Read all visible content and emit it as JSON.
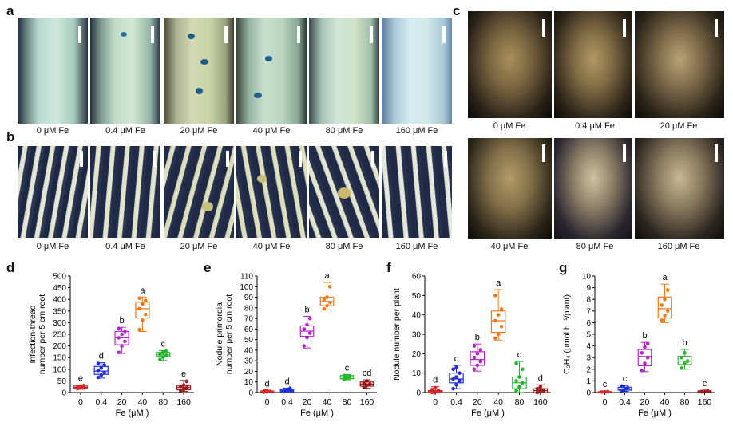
{
  "panel_labels": [
    "a",
    "b",
    "c",
    "d",
    "e",
    "f",
    "g"
  ],
  "row_a": {
    "captions": [
      "0 μM Fe",
      "0.4 μM Fe",
      "20 μM Fe",
      "40 μM Fe",
      "80 μM Fe",
      "160 μM Fe"
    ]
  },
  "row_b": {
    "captions": [
      "0 μM Fe",
      "0.4 μM Fe",
      "20 μM Fe",
      "40 μM Fe",
      "80 μM Fe",
      "160 μM Fe"
    ]
  },
  "panel_c": {
    "top_captions": [
      "0 μM Fe",
      "0.4 μM Fe",
      "20 μM Fe"
    ],
    "bottom_captions": [
      "40 μM Fe",
      "80 μM Fe",
      "160 μM Fe"
    ]
  },
  "colors": [
    "#d62728",
    "#1f2fd6",
    "#b526c9",
    "#f07a1a",
    "#22b52a",
    "#9e1a1a"
  ],
  "chart_data": [
    {
      "type": "box",
      "panel": "d",
      "ylabel": "Infection-thread number per 5 cm root",
      "ylabel_lines": [
        "Infection-thread",
        "number per 5 cm root"
      ],
      "xlabel": "Fe (μM )",
      "categories": [
        "0",
        "0.4",
        "20",
        "40",
        "80",
        "160"
      ],
      "ylim": [
        0,
        500
      ],
      "yticks": [
        0,
        50,
        100,
        150,
        200,
        250,
        300,
        350,
        400,
        450,
        500
      ],
      "letters": [
        "e",
        "d",
        "b",
        "a",
        "c",
        "e"
      ],
      "boxes": [
        {
          "min": 14,
          "q1": 18,
          "median": 22,
          "q3": 28,
          "max": 32,
          "points": [
            17,
            20,
            22,
            24,
            27,
            30
          ]
        },
        {
          "min": 62,
          "q1": 78,
          "median": 92,
          "q3": 112,
          "max": 128,
          "points": [
            65,
            75,
            85,
            95,
            105,
            118,
            125
          ]
        },
        {
          "min": 168,
          "q1": 205,
          "median": 235,
          "q3": 262,
          "max": 280,
          "points": [
            172,
            200,
            220,
            235,
            250,
            262,
            275
          ]
        },
        {
          "min": 262,
          "q1": 320,
          "median": 360,
          "q3": 388,
          "max": 410,
          "points": [
            270,
            310,
            335,
            360,
            380,
            395,
            405
          ]
        },
        {
          "min": 138,
          "q1": 155,
          "median": 162,
          "q3": 172,
          "max": 180,
          "points": [
            142,
            152,
            160,
            165,
            172,
            178
          ]
        },
        {
          "min": 5,
          "q1": 12,
          "median": 22,
          "q3": 30,
          "max": 52,
          "points": [
            8,
            14,
            20,
            26,
            32,
            48
          ]
        }
      ]
    },
    {
      "type": "box",
      "panel": "e",
      "ylabel": "Nodule primordia number per 5 cm root",
      "ylabel_lines": [
        "Nodule primordia",
        "number per 5 cm root"
      ],
      "xlabel": "Fe (μM )",
      "categories": [
        "0",
        "0.4",
        "20",
        "40",
        "80",
        "160"
      ],
      "ylim": [
        0,
        110
      ],
      "yticks": [
        0,
        10,
        20,
        30,
        40,
        50,
        60,
        70,
        80,
        90,
        100,
        110
      ],
      "letters": [
        "d",
        "d",
        "b",
        "a",
        "c",
        "cd"
      ],
      "boxes": [
        {
          "min": 0,
          "q1": 0.5,
          "median": 1,
          "q3": 1.5,
          "max": 2,
          "points": [
            0.5,
            1,
            1,
            1.5,
            2
          ]
        },
        {
          "min": 0,
          "q1": 1,
          "median": 2,
          "q3": 3,
          "max": 4,
          "points": [
            1,
            2,
            2,
            3,
            3,
            4
          ]
        },
        {
          "min": 42,
          "q1": 53,
          "median": 58,
          "q3": 63,
          "max": 72,
          "points": [
            44,
            52,
            56,
            60,
            64,
            70
          ]
        },
        {
          "min": 78,
          "q1": 82,
          "median": 86,
          "q3": 90,
          "max": 104,
          "points": [
            79,
            82,
            85,
            88,
            90,
            100
          ]
        },
        {
          "min": 12,
          "q1": 13,
          "median": 14.5,
          "q3": 16,
          "max": 17,
          "points": [
            12.5,
            14,
            15,
            16
          ]
        },
        {
          "min": 4,
          "q1": 6,
          "median": 8,
          "q3": 10,
          "max": 12,
          "points": [
            5,
            7,
            8,
            9,
            11
          ]
        }
      ]
    },
    {
      "type": "box",
      "panel": "f",
      "ylabel": "Nodule number per plant",
      "ylabel_lines": [
        "Nodule number per plant"
      ],
      "xlabel": "Fe (μM )",
      "categories": [
        "0",
        "0.4",
        "20",
        "40",
        "80",
        "160"
      ],
      "ylim": [
        0,
        60
      ],
      "yticks": [
        0,
        10,
        20,
        30,
        40,
        50,
        60
      ],
      "letters": [
        "d",
        "c",
        "b",
        "a",
        "c",
        "d"
      ],
      "boxes": [
        {
          "min": 0,
          "q1": 0,
          "median": 0.5,
          "q3": 1,
          "max": 3,
          "points": [
            0,
            0.5,
            1,
            1.5,
            2.5
          ]
        },
        {
          "min": 2,
          "q1": 5,
          "median": 7,
          "q3": 10,
          "max": 14,
          "points": [
            2,
            4,
            6,
            7,
            8,
            10,
            12,
            13
          ]
        },
        {
          "min": 11,
          "q1": 14,
          "median": 17,
          "q3": 21,
          "max": 25,
          "points": [
            12,
            14,
            16,
            18,
            20,
            22,
            24
          ]
        },
        {
          "min": 27,
          "q1": 31,
          "median": 37,
          "q3": 42,
          "max": 53,
          "points": [
            28,
            30,
            34,
            37,
            40,
            43,
            50
          ]
        },
        {
          "min": 0,
          "q1": 2,
          "median": 5,
          "q3": 8,
          "max": 16,
          "points": [
            1,
            3,
            5,
            6,
            8,
            12,
            15
          ]
        },
        {
          "min": 0,
          "q1": 0,
          "median": 1,
          "q3": 2,
          "max": 4,
          "points": [
            0,
            1,
            1,
            2,
            3
          ]
        }
      ]
    },
    {
      "type": "box",
      "panel": "g",
      "ylabel": "C₂H₄ (μmol h⁻¹/plant)",
      "ylabel_lines": [
        "C₂H₄ (μmol h⁻¹/plant)"
      ],
      "xlabel": "Fe (μM )",
      "categories": [
        "0",
        "0.4",
        "20",
        "40",
        "80",
        "160"
      ],
      "ylim": [
        0,
        10
      ],
      "yticks": [
        0,
        1,
        2,
        3,
        4,
        5,
        6,
        7,
        8,
        9,
        10
      ],
      "letters": [
        "c",
        "c",
        "b",
        "a",
        "b",
        "c"
      ],
      "boxes": [
        {
          "min": 0,
          "q1": 0.03,
          "median": 0.05,
          "q3": 0.08,
          "max": 0.12,
          "points": [
            0.04,
            0.06,
            0.08
          ]
        },
        {
          "min": 0.1,
          "q1": 0.2,
          "median": 0.3,
          "q3": 0.45,
          "max": 0.6,
          "points": [
            0.15,
            0.3,
            0.4,
            0.55
          ]
        },
        {
          "min": 1.8,
          "q1": 2.3,
          "median": 3.1,
          "q3": 3.7,
          "max": 4.3,
          "points": [
            1.9,
            2.5,
            3.0,
            3.4,
            3.9,
            4.2
          ]
        },
        {
          "min": 6.0,
          "q1": 6.4,
          "median": 7.2,
          "q3": 8.2,
          "max": 9.3,
          "points": [
            6.2,
            6.6,
            7.0,
            7.5,
            8.0,
            8.8
          ]
        },
        {
          "min": 2.0,
          "q1": 2.4,
          "median": 2.7,
          "q3": 3.1,
          "max": 3.7,
          "points": [
            2.1,
            2.5,
            2.7,
            3.0,
            3.4
          ]
        },
        {
          "min": 0.02,
          "q1": 0.05,
          "median": 0.1,
          "q3": 0.15,
          "max": 0.2,
          "points": [
            0.06,
            0.1,
            0.14
          ]
        }
      ]
    }
  ]
}
